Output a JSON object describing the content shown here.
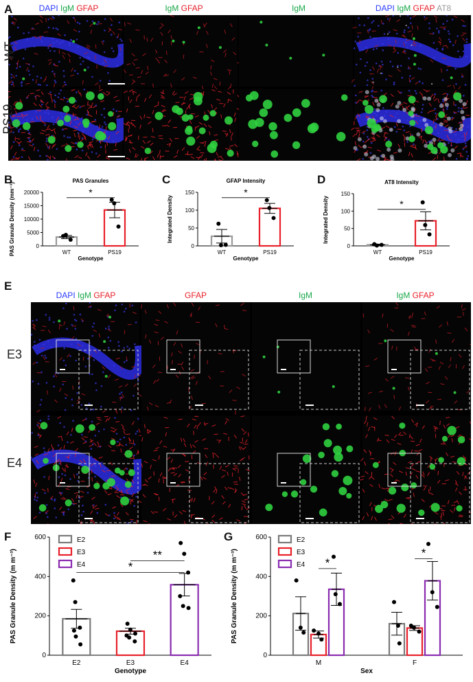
{
  "panels": {
    "A": {
      "letter": "A",
      "rows": [
        "WT",
        "PS19"
      ],
      "captions": [
        [
          {
            "t": "DAPI ",
            "c": "blue"
          },
          {
            "t": "IgM ",
            "c": "green"
          },
          {
            "t": "GFAP",
            "c": "red"
          }
        ],
        [
          {
            "t": "IgM ",
            "c": "green"
          },
          {
            "t": "GFAP",
            "c": "red"
          }
        ],
        [
          {
            "t": "IgM",
            "c": "green"
          }
        ],
        [
          {
            "t": "DAPI ",
            "c": "blue"
          },
          {
            "t": "IgM ",
            "c": "green"
          },
          {
            "t": "GFAP ",
            "c": "red"
          },
          {
            "t": "AT8",
            "c": "gray"
          }
        ]
      ]
    },
    "E": {
      "letter": "E",
      "rows": [
        "E3",
        "E4"
      ],
      "captions": [
        [
          {
            "t": "DAPI ",
            "c": "blue"
          },
          {
            "t": "IgM ",
            "c": "green"
          },
          {
            "t": "GFAP",
            "c": "red"
          }
        ],
        [
          {
            "t": "GFAP",
            "c": "red"
          }
        ],
        [
          {
            "t": "IgM",
            "c": "green"
          }
        ],
        [
          {
            "t": "IgM ",
            "c": "green"
          },
          {
            "t": "GFAP",
            "c": "red"
          }
        ]
      ]
    }
  },
  "colors": {
    "blue": "#2a3bff",
    "green": "#1aa84a",
    "red": "#e8202a",
    "gray": "#9a9a9a",
    "purple": "#8a2bb0",
    "bar_gray": "#7a7a7a"
  },
  "chart_data": [
    {
      "id": "B",
      "letter": "B",
      "type": "bar",
      "title": "PAS Granules",
      "xlabel": "Genotype",
      "ylabel": "PAS Granule Density (mm⁻³)",
      "categories": [
        "WT",
        "PS19"
      ],
      "values": [
        3300,
        13400
      ],
      "errors": [
        600,
        2900
      ],
      "points": [
        [
          3700,
          4100,
          2300
        ],
        [
          17200,
          15900,
          7200
        ]
      ],
      "bar_colors": [
        "gray",
        "red"
      ],
      "ylim": [
        0,
        20000
      ],
      "yticks": [
        "0",
        "5000",
        "10000",
        "15000",
        "20000"
      ],
      "yticks_num": [
        0,
        5000,
        10000,
        15000,
        20000
      ],
      "sig": [
        {
          "from": 0,
          "to": 1,
          "label": "*",
          "y": 18000
        }
      ]
    },
    {
      "id": "C",
      "letter": "C",
      "type": "bar",
      "title": "GFAP Intensity",
      "xlabel": "Genotype",
      "ylabel": "Integrated Density",
      "categories": [
        "WT",
        "PS19"
      ],
      "values": [
        27,
        105
      ],
      "errors": [
        19,
        14
      ],
      "points": [
        [
          62,
          2,
          3
        ],
        [
          128,
          106,
          78
        ]
      ],
      "bar_colors": [
        "gray",
        "red"
      ],
      "ylim": [
        0,
        150
      ],
      "yticks": [
        "0",
        "50",
        "100",
        "150"
      ],
      "yticks_num": [
        0,
        50,
        100,
        150
      ],
      "sig": [
        {
          "from": 0,
          "to": 1,
          "label": "*",
          "y": 135
        }
      ]
    },
    {
      "id": "D",
      "letter": "D",
      "type": "bar",
      "title": "AT8 Intensity",
      "xlabel": "Genotype",
      "ylabel": "Integrated Density",
      "categories": [
        "WT",
        "PS19"
      ],
      "values": [
        3,
        72
      ],
      "errors": [
        2,
        26
      ],
      "points": [
        [
          5,
          1,
          3
        ],
        [
          125,
          60,
          33
        ]
      ],
      "bar_colors": [
        "gray",
        "red"
      ],
      "ylim": [
        0,
        150
      ],
      "yticks": [
        "0",
        "50",
        "100",
        "150"
      ],
      "yticks_num": [
        0,
        50,
        100,
        150
      ],
      "sig": [
        {
          "from": 0,
          "to": 1,
          "label": "*",
          "y": 105
        }
      ]
    },
    {
      "id": "F",
      "letter": "F",
      "type": "bar",
      "title": "",
      "xlabel": "Genotype",
      "ylabel": "PAS Granule Density (m m⁻³)",
      "categories": [
        "E2",
        "E3",
        "E4"
      ],
      "values": [
        185,
        122,
        358
      ],
      "errors": [
        48,
        15,
        57
      ],
      "points": [
        [
          380,
          270,
          140,
          125,
          95,
          55
        ],
        [
          160,
          130,
          110,
          100,
          90,
          70
        ],
        [
          570,
          515,
          420,
          300,
          250,
          240
        ]
      ],
      "bar_colors": [
        "bar_gray",
        "red",
        "purple"
      ],
      "legend": [
        "E2",
        "E3",
        "E4"
      ],
      "ylim": [
        0,
        600
      ],
      "yticks": [
        "0",
        "200",
        "400",
        "600"
      ],
      "yticks_num": [
        0,
        200,
        400,
        600
      ],
      "sig": [
        {
          "from": 1,
          "to": 2,
          "label": "**",
          "y": 480
        },
        {
          "from": 0,
          "to": 2,
          "label": "*",
          "y": 420
        }
      ]
    },
    {
      "id": "G",
      "letter": "G",
      "type": "bar",
      "title": "",
      "xlabel": "Sex",
      "ylabel": "PAS Granule Density (m m⁻³)",
      "groups": [
        "M",
        "F"
      ],
      "series": [
        {
          "name": "E2",
          "color": "bar_gray",
          "values": [
            212,
            160
          ],
          "errors": [
            85,
            58
          ],
          "points": [
            [
              380,
              140,
              115
            ],
            [
              270,
              150,
              60
            ]
          ]
        },
        {
          "name": "E3",
          "color": "red",
          "values": [
            105,
            138
          ],
          "errors": [
            18,
            12
          ],
          "points": [
            [
              125,
              110,
              80
            ],
            [
              150,
              140,
              120
            ]
          ]
        },
        {
          "name": "E4",
          "color": "purple",
          "values": [
            335,
            378
          ],
          "errors": [
            82,
            98
          ],
          "points": [
            [
              500,
              310,
              260
            ],
            [
              565,
              320,
              245
            ]
          ]
        }
      ],
      "ylim": [
        0,
        600
      ],
      "yticks": [
        "0",
        "200",
        "400",
        "600"
      ],
      "yticks_num": [
        0,
        200,
        400,
        600
      ],
      "sig": [
        {
          "group": 0,
          "from": 1,
          "to": 2,
          "label": "*",
          "y": 440
        },
        {
          "group": 1,
          "from": 1,
          "to": 2,
          "label": "*",
          "y": 490
        }
      ]
    }
  ]
}
